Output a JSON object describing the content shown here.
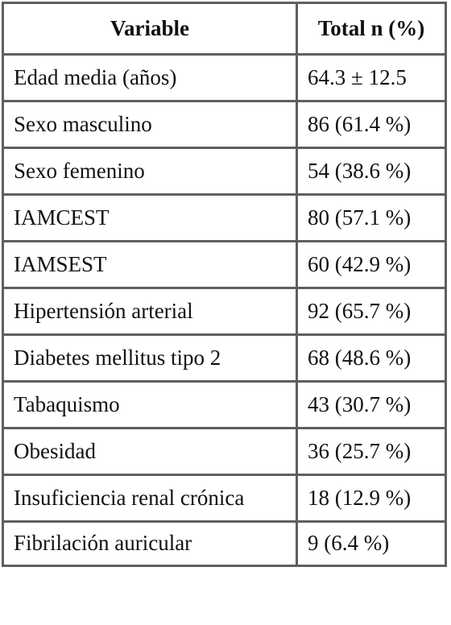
{
  "table": {
    "headers": {
      "variable": "Variable",
      "total": "Total n (%)"
    },
    "rows": [
      {
        "variable": "Edad media (años)",
        "total": "64.3 ± 12.5"
      },
      {
        "variable": "Sexo masculino",
        "total": "86 (61.4 %)"
      },
      {
        "variable": "Sexo femenino",
        "total": "54 (38.6 %)"
      },
      {
        "variable": "IAMCEST",
        "total": "80 (57.1 %)"
      },
      {
        "variable": "IAMSEST",
        "total": "60 (42.9 %)"
      },
      {
        "variable": "Hipertensión arterial",
        "total": "92 (65.7 %)"
      },
      {
        "variable": "Diabetes mellitus tipo 2",
        "total": "68 (48.6 %)"
      },
      {
        "variable": "Tabaquismo",
        "total": "43 (30.7 %)"
      },
      {
        "variable": "Obesidad",
        "total": "36 (25.7 %)"
      },
      {
        "variable": "Insuficiencia renal crónica",
        "total": "18 (12.9 %)"
      },
      {
        "variable": "Fibrilación auricular",
        "total": "9 (6.4 %)"
      }
    ]
  }
}
